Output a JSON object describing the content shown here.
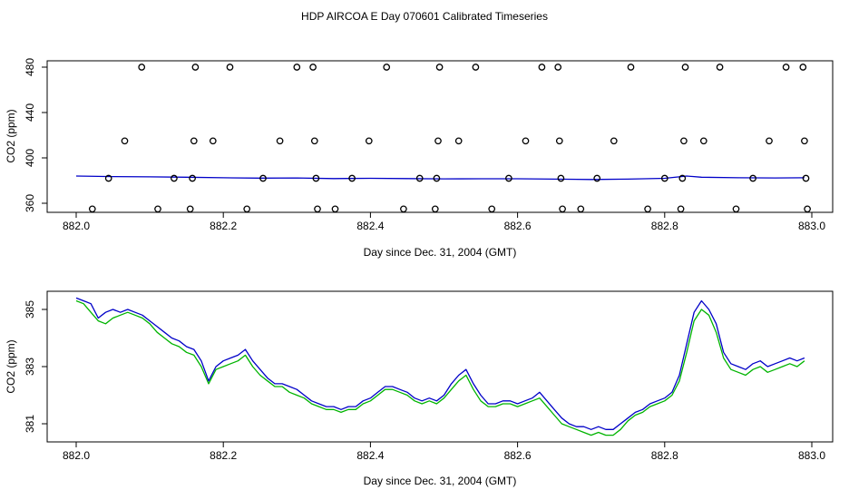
{
  "figure_title": "HDP AIRCOA E  Day 070601  Calibrated Timeseries",
  "colors": {
    "series_green": "#00b400",
    "series_blue": "#0000c8",
    "axis": "#000000"
  },
  "chart_data": [
    {
      "type": "scatter",
      "xlabel": "Day since Dec. 31, 2004 (GMT)",
      "ylabel": "CO2 (ppm)",
      "xlim": [
        882.0,
        883.0
      ],
      "ylim": [
        350,
        485
      ],
      "xticks": [
        882.0,
        882.2,
        882.4,
        882.6,
        882.8,
        883.0
      ],
      "xtick_labels": [
        "882.0",
        "882.2",
        "882.4",
        "882.6",
        "882.8",
        "883.0"
      ],
      "yticks": [
        360,
        400,
        440,
        480
      ],
      "ytick_labels": [
        "360",
        "400",
        "440",
        "480"
      ],
      "grid": false,
      "points": [
        {
          "x": 882.022,
          "y": 355
        },
        {
          "x": 882.044,
          "y": 382
        },
        {
          "x": 882.066,
          "y": 415
        },
        {
          "x": 882.089,
          "y": 480
        },
        {
          "x": 882.111,
          "y": 355
        },
        {
          "x": 882.133,
          "y": 382
        },
        {
          "x": 882.155,
          "y": 355
        },
        {
          "x": 882.158,
          "y": 382
        },
        {
          "x": 882.16,
          "y": 415
        },
        {
          "x": 882.162,
          "y": 480
        },
        {
          "x": 882.186,
          "y": 415
        },
        {
          "x": 882.209,
          "y": 480
        },
        {
          "x": 882.232,
          "y": 355
        },
        {
          "x": 882.254,
          "y": 382
        },
        {
          "x": 882.277,
          "y": 415
        },
        {
          "x": 882.3,
          "y": 480
        },
        {
          "x": 882.322,
          "y": 480
        },
        {
          "x": 882.324,
          "y": 415
        },
        {
          "x": 882.326,
          "y": 382
        },
        {
          "x": 882.328,
          "y": 355
        },
        {
          "x": 882.352,
          "y": 355
        },
        {
          "x": 882.375,
          "y": 382
        },
        {
          "x": 882.398,
          "y": 415
        },
        {
          "x": 882.422,
          "y": 480
        },
        {
          "x": 882.445,
          "y": 355
        },
        {
          "x": 882.467,
          "y": 382
        },
        {
          "x": 882.488,
          "y": 355
        },
        {
          "x": 882.49,
          "y": 382
        },
        {
          "x": 882.492,
          "y": 415
        },
        {
          "x": 882.494,
          "y": 480
        },
        {
          "x": 882.52,
          "y": 415
        },
        {
          "x": 882.543,
          "y": 480
        },
        {
          "x": 882.565,
          "y": 355
        },
        {
          "x": 882.588,
          "y": 382
        },
        {
          "x": 882.611,
          "y": 415
        },
        {
          "x": 882.633,
          "y": 480
        },
        {
          "x": 882.655,
          "y": 480
        },
        {
          "x": 882.657,
          "y": 415
        },
        {
          "x": 882.659,
          "y": 382
        },
        {
          "x": 882.661,
          "y": 355
        },
        {
          "x": 882.686,
          "y": 355
        },
        {
          "x": 882.708,
          "y": 382
        },
        {
          "x": 882.731,
          "y": 415
        },
        {
          "x": 882.754,
          "y": 480
        },
        {
          "x": 882.777,
          "y": 355
        },
        {
          "x": 882.8,
          "y": 382
        },
        {
          "x": 882.822,
          "y": 355
        },
        {
          "x": 882.824,
          "y": 382
        },
        {
          "x": 882.826,
          "y": 415
        },
        {
          "x": 882.828,
          "y": 480
        },
        {
          "x": 882.853,
          "y": 415
        },
        {
          "x": 882.875,
          "y": 480
        },
        {
          "x": 882.897,
          "y": 355
        },
        {
          "x": 882.92,
          "y": 382
        },
        {
          "x": 882.942,
          "y": 415
        },
        {
          "x": 882.965,
          "y": 480
        },
        {
          "x": 882.988,
          "y": 480
        },
        {
          "x": 882.99,
          "y": 415
        },
        {
          "x": 882.992,
          "y": 382
        },
        {
          "x": 882.994,
          "y": 355
        }
      ],
      "lines": [
        {
          "color": "blue",
          "x": [
            882.0,
            882.05,
            882.1,
            882.15,
            882.2,
            882.25,
            882.3,
            882.35,
            882.4,
            882.45,
            882.5,
            882.55,
            882.6,
            882.65,
            882.7,
            882.75,
            882.8,
            882.83,
            882.85,
            882.9,
            882.95,
            882.99
          ],
          "y": [
            384,
            383.5,
            383.3,
            383,
            382.5,
            382.2,
            382.3,
            381.8,
            382,
            381.8,
            381.5,
            381.6,
            381.6,
            381.3,
            381.0,
            381.3,
            382,
            384,
            383,
            382.5,
            382.3,
            382.5
          ]
        }
      ]
    },
    {
      "type": "line",
      "xlabel": "Day since Dec. 31, 2004 (GMT)",
      "ylabel": "CO2 (ppm)",
      "xlim": [
        882.0,
        883.0
      ],
      "ylim": [
        380.5,
        385.6
      ],
      "xticks": [
        882.0,
        882.2,
        882.4,
        882.6,
        882.8,
        883.0
      ],
      "xtick_labels": [
        "882.0",
        "882.2",
        "882.4",
        "882.6",
        "882.8",
        "883.0"
      ],
      "yticks": [
        381,
        383,
        385
      ],
      "ytick_labels": [
        "381",
        "383",
        "385"
      ],
      "grid": false,
      "series": [
        {
          "color": "green",
          "x": [
            882.0,
            882.01,
            882.02,
            882.03,
            882.04,
            882.05,
            882.06,
            882.07,
            882.08,
            882.09,
            882.1,
            882.11,
            882.12,
            882.13,
            882.14,
            882.15,
            882.16,
            882.17,
            882.18,
            882.19,
            882.2,
            882.21,
            882.22,
            882.23,
            882.24,
            882.25,
            882.26,
            882.27,
            882.28,
            882.29,
            882.3,
            882.31,
            882.32,
            882.33,
            882.34,
            882.35,
            882.36,
            882.37,
            882.38,
            882.39,
            882.4,
            882.41,
            882.42,
            882.43,
            882.44,
            882.45,
            882.46,
            882.47,
            882.48,
            882.49,
            882.5,
            882.51,
            882.52,
            882.53,
            882.54,
            882.55,
            882.56,
            882.57,
            882.58,
            882.59,
            882.6,
            882.61,
            882.62,
            882.63,
            882.64,
            882.65,
            882.66,
            882.67,
            882.68,
            882.69,
            882.7,
            882.71,
            882.72,
            882.73,
            882.74,
            882.75,
            882.76,
            882.77,
            882.78,
            882.79,
            882.8,
            882.81,
            882.82,
            882.83,
            882.84,
            882.85,
            882.86,
            882.87,
            882.88,
            882.89,
            882.9,
            882.91,
            882.92,
            882.93,
            882.94,
            882.95,
            882.96,
            882.97,
            882.98,
            882.99
          ],
          "y": [
            385.3,
            385.2,
            384.9,
            384.6,
            384.5,
            384.7,
            384.8,
            384.9,
            384.8,
            384.7,
            384.5,
            384.2,
            384.0,
            383.8,
            383.7,
            383.5,
            383.4,
            383.0,
            382.4,
            382.9,
            383.0,
            383.1,
            383.2,
            383.4,
            383.0,
            382.7,
            382.5,
            382.3,
            382.3,
            382.1,
            382.0,
            381.9,
            381.7,
            381.6,
            381.5,
            381.5,
            381.4,
            381.5,
            381.5,
            381.7,
            381.8,
            382.0,
            382.2,
            382.2,
            382.1,
            382.0,
            381.8,
            381.7,
            381.8,
            381.7,
            381.9,
            382.2,
            382.5,
            382.7,
            382.2,
            381.8,
            381.6,
            381.6,
            381.7,
            381.7,
            381.6,
            381.7,
            381.8,
            381.9,
            381.6,
            381.3,
            381.0,
            380.9,
            380.8,
            380.7,
            380.6,
            380.7,
            380.6,
            380.6,
            380.8,
            381.1,
            381.3,
            381.4,
            381.6,
            381.7,
            381.8,
            382.0,
            382.5,
            383.5,
            384.6,
            385.0,
            384.8,
            384.2,
            383.3,
            382.9,
            382.8,
            382.7,
            382.9,
            383.0,
            382.8,
            382.9,
            383.0,
            383.1,
            383.0,
            383.2
          ]
        },
        {
          "color": "blue",
          "x": [
            882.0,
            882.01,
            882.02,
            882.03,
            882.04,
            882.05,
            882.06,
            882.07,
            882.08,
            882.09,
            882.1,
            882.11,
            882.12,
            882.13,
            882.14,
            882.15,
            882.16,
            882.17,
            882.18,
            882.19,
            882.2,
            882.21,
            882.22,
            882.23,
            882.24,
            882.25,
            882.26,
            882.27,
            882.28,
            882.29,
            882.3,
            882.31,
            882.32,
            882.33,
            882.34,
            882.35,
            882.36,
            882.37,
            882.38,
            882.39,
            882.4,
            882.41,
            882.42,
            882.43,
            882.44,
            882.45,
            882.46,
            882.47,
            882.48,
            882.49,
            882.5,
            882.51,
            882.52,
            882.53,
            882.54,
            882.55,
            882.56,
            882.57,
            882.58,
            882.59,
            882.6,
            882.61,
            882.62,
            882.63,
            882.64,
            882.65,
            882.66,
            882.67,
            882.68,
            882.69,
            882.7,
            882.71,
            882.72,
            882.73,
            882.74,
            882.75,
            882.76,
            882.77,
            882.78,
            882.79,
            882.8,
            882.81,
            882.82,
            882.83,
            882.84,
            882.85,
            882.86,
            882.87,
            882.88,
            882.89,
            882.9,
            882.91,
            882.92,
            882.93,
            882.94,
            882.95,
            882.96,
            882.97,
            882.98,
            882.99
          ],
          "y": [
            385.4,
            385.3,
            385.2,
            384.7,
            384.9,
            385.0,
            384.9,
            385.0,
            384.9,
            384.8,
            384.6,
            384.4,
            384.2,
            384.0,
            383.9,
            383.7,
            383.6,
            383.2,
            382.5,
            383.0,
            383.2,
            383.3,
            383.4,
            383.6,
            383.2,
            382.9,
            382.6,
            382.4,
            382.4,
            382.3,
            382.2,
            382.0,
            381.8,
            381.7,
            381.6,
            381.6,
            381.5,
            381.6,
            381.6,
            381.8,
            381.9,
            382.1,
            382.3,
            382.3,
            382.2,
            382.1,
            381.9,
            381.8,
            381.9,
            381.8,
            382.0,
            382.4,
            382.7,
            382.9,
            382.4,
            382.0,
            381.7,
            381.7,
            381.8,
            381.8,
            381.7,
            381.8,
            381.9,
            382.1,
            381.8,
            381.5,
            381.2,
            381.0,
            380.9,
            380.9,
            380.8,
            380.9,
            380.8,
            380.8,
            381.0,
            381.2,
            381.4,
            381.5,
            381.7,
            381.8,
            381.9,
            382.1,
            382.7,
            383.8,
            384.9,
            385.3,
            385.0,
            384.5,
            383.5,
            383.1,
            383.0,
            382.9,
            383.1,
            383.2,
            383.0,
            383.1,
            383.2,
            383.3,
            383.2,
            383.3
          ]
        }
      ]
    }
  ]
}
